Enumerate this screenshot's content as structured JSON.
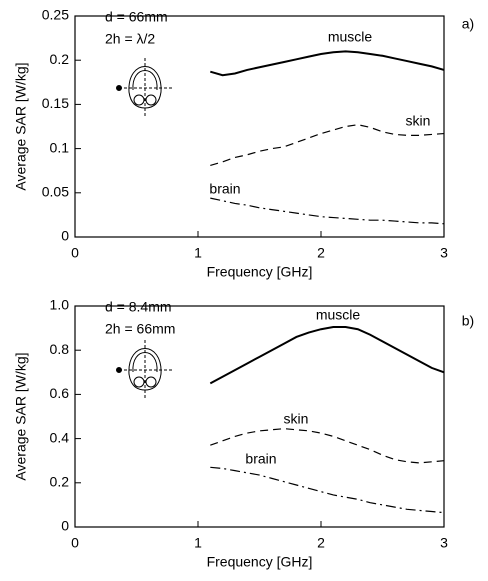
{
  "chart_data": [
    {
      "type": "line",
      "panel": "a)",
      "annotations": [
        "d = 66mm",
        "2h = λ/2"
      ],
      "x_label": "Frequency [GHz]",
      "y_label": "Average SAR [W/kg]",
      "xlim": [
        0,
        3
      ],
      "xticks": [
        0,
        1,
        2,
        3
      ],
      "ylim": [
        0,
        0.25
      ],
      "yticks": [
        0,
        0.05,
        0.1,
        0.15,
        0.2,
        0.25
      ],
      "x": [
        1.1,
        1.2,
        1.3,
        1.4,
        1.5,
        1.6,
        1.7,
        1.8,
        1.9,
        2.0,
        2.1,
        2.2,
        2.3,
        2.4,
        2.5,
        2.6,
        2.7,
        2.8,
        2.9,
        3.0
      ],
      "series": [
        {
          "name": "muscle",
          "color": "#000000",
          "line_style": "solid",
          "values": [
            0.187,
            0.183,
            0.185,
            0.189,
            0.192,
            0.195,
            0.198,
            0.201,
            0.204,
            0.207,
            0.209,
            0.21,
            0.209,
            0.207,
            0.205,
            0.202,
            0.199,
            0.196,
            0.193,
            0.189
          ]
        },
        {
          "name": "skin",
          "color": "#000000",
          "line_style": "dashed",
          "values": [
            0.081,
            0.085,
            0.09,
            0.093,
            0.097,
            0.1,
            0.102,
            0.107,
            0.112,
            0.117,
            0.121,
            0.125,
            0.127,
            0.124,
            0.119,
            0.116,
            0.115,
            0.115,
            0.116,
            0.117
          ]
        },
        {
          "name": "brain",
          "color": "#000000",
          "line_style": "dashdot",
          "values": [
            0.044,
            0.041,
            0.038,
            0.036,
            0.033,
            0.031,
            0.029,
            0.027,
            0.025,
            0.023,
            0.022,
            0.021,
            0.02,
            0.019,
            0.019,
            0.018,
            0.017,
            0.016,
            0.016,
            0.015
          ]
        }
      ]
    },
    {
      "type": "line",
      "panel": "b)",
      "annotations": [
        "d = 8.4mm",
        "2h = 66mm"
      ],
      "x_label": "Frequency [GHz]",
      "y_label": "Average SAR [W/kg]",
      "xlim": [
        0,
        3
      ],
      "xticks": [
        0,
        1,
        2,
        3
      ],
      "ylim": [
        0,
        1
      ],
      "yticks": [
        0,
        0.2,
        0.4,
        0.6,
        0.8,
        {
          "value": 1,
          "label": "1.0"
        }
      ],
      "x": [
        1.1,
        1.2,
        1.3,
        1.4,
        1.5,
        1.6,
        1.7,
        1.8,
        1.9,
        2.0,
        2.1,
        2.2,
        2.3,
        2.4,
        2.5,
        2.6,
        2.7,
        2.8,
        2.9,
        3.0
      ],
      "series": [
        {
          "name": "muscle",
          "color": "#000000",
          "line_style": "solid",
          "values": [
            0.65,
            0.68,
            0.71,
            0.74,
            0.77,
            0.8,
            0.83,
            0.86,
            0.88,
            0.895,
            0.905,
            0.905,
            0.895,
            0.87,
            0.84,
            0.81,
            0.78,
            0.75,
            0.72,
            0.7
          ]
        },
        {
          "name": "skin",
          "color": "#000000",
          "line_style": "dashed",
          "values": [
            0.37,
            0.39,
            0.41,
            0.425,
            0.435,
            0.44,
            0.445,
            0.44,
            0.435,
            0.425,
            0.41,
            0.39,
            0.37,
            0.35,
            0.325,
            0.305,
            0.295,
            0.29,
            0.295,
            0.3
          ]
        },
        {
          "name": "brain",
          "color": "#000000",
          "line_style": "dashdot",
          "values": [
            0.27,
            0.265,
            0.255,
            0.245,
            0.235,
            0.22,
            0.205,
            0.19,
            0.175,
            0.16,
            0.145,
            0.135,
            0.125,
            0.11,
            0.1,
            0.09,
            0.08,
            0.075,
            0.07,
            0.065
          ]
        }
      ]
    }
  ]
}
